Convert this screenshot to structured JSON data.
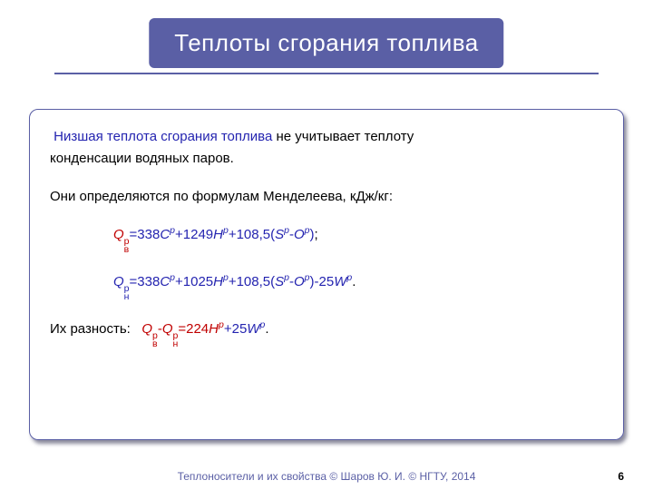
{
  "colors": {
    "brand": "#5a5fa5",
    "red": "#c00000",
    "blue": "#2424b0",
    "text": "#000000",
    "bg": "#ffffff"
  },
  "title": "Теплоты сгорания топлива",
  "body": {
    "lead_highlight": "Низшая теплота сгорания топлива",
    "lead_rest_1": " не учитывает теплоту",
    "lead_rest_2": "конденсации водяных паров.",
    "mendeleev": "Они определяются по формулам Менделеева, кДж/кг:",
    "formula1": {
      "Qsym": "Q",
      "Qsub": "в",
      "Qsup": "р",
      "eq": "=338",
      "C": "C",
      "Csup": "р",
      "plus1": "+1249",
      "H": "H",
      "Hsup": "р",
      "plus2": "+108,5(",
      "S": "S",
      "Ssup": "р",
      "minus": "-",
      "O": "O",
      "Osup": "р",
      "close": ")",
      "end": ";"
    },
    "formula2": {
      "Qsym": "Q",
      "Qsub": "н",
      "Qsup": "р",
      "eq": "=338",
      "C": "C",
      "Csup": "р",
      "plus1": "+1025",
      "H": "H",
      "Hsup": "р",
      "plus2": "+108,5(",
      "S": "S",
      "Ssup": "р",
      "minus": "-",
      "O": "O",
      "Osup": "р",
      "close": ")-25",
      "W": "W",
      "Wsup": "р",
      "end": "."
    },
    "diff_label": "Их разность:   ",
    "diff": {
      "Q1": "Q",
      "Q1sub": "в",
      "Q1sup": "р",
      "minus1": "-",
      "Q2": "Q",
      "Q2sub": "н",
      "Q2sup": "р",
      "eq": "=224",
      "H": "H",
      "Hsup": "р",
      "plus": "+25",
      "W": "W",
      "Wsup": "р",
      "end": "."
    }
  },
  "footer": "Теплоносители и их свойства © Шаров Ю. И. © НГТУ, 2014",
  "page": "6"
}
